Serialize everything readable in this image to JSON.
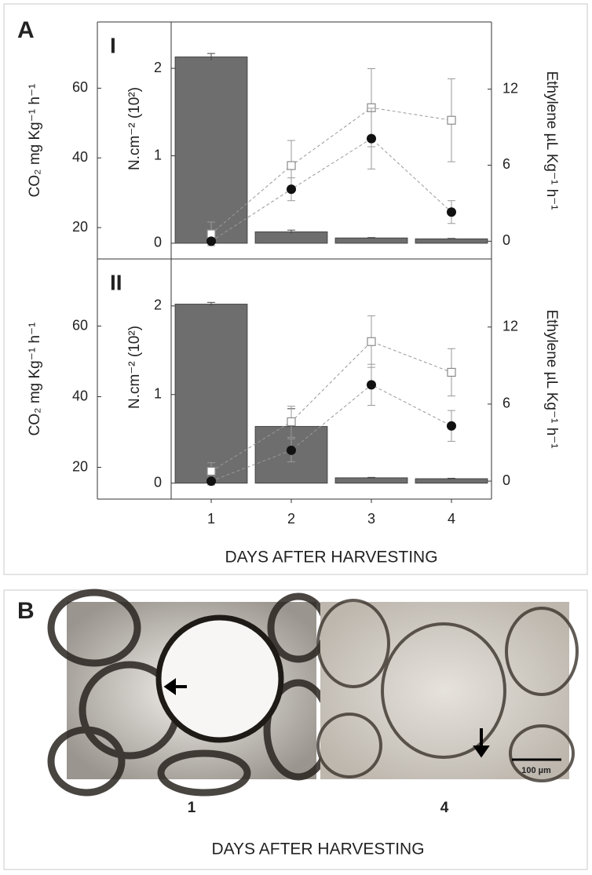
{
  "panel_a_label": "A",
  "chart_data": [
    {
      "type": "bar",
      "title": "I",
      "ylabel": "CO₂ mg Kg⁻¹ h⁻¹",
      "y2label": "Ethylene µL Kg⁻¹ h⁻¹",
      "y3label": "N.cm⁻² (10²)",
      "ylim": [
        11,
        79
      ],
      "yticks": [
        20,
        40,
        60
      ],
      "y2lim": [
        -1.4,
        17.3
      ],
      "y2ticks": [
        0,
        6,
        12
      ],
      "y3lim": [
        -0.18,
        2.53
      ],
      "y3ticks": [
        0,
        1,
        2
      ],
      "series": [
        {
          "type": "bar",
          "axis": "y3",
          "color": "#6e6e6e",
          "values": [
            2.13,
            0.13,
            0.06,
            0.05
          ],
          "errors": [
            0.04,
            0.02,
            0.005,
            0.005
          ]
        },
        {
          "type": "line",
          "marker": "square",
          "axis": "y",
          "color": "#8a8a8a",
          "values": [
            18.2,
            37.8,
            54.4,
            50.8
          ],
          "errors": [
            3.4,
            7.2,
            11.2,
            11.9
          ]
        },
        {
          "type": "line",
          "marker": "circle",
          "axis": "y2",
          "color": "#111111",
          "values": [
            0,
            4.1,
            8.1,
            2.3
          ],
          "errors": [
            0,
            0.9,
            2.4,
            0.9
          ]
        }
      ]
    },
    {
      "type": "bar",
      "title": "II",
      "ylabel": "CO₂ mg Kg⁻¹ h⁻¹",
      "y2label": "Ethylene µL Kg⁻¹ h⁻¹",
      "y3label": "N.cm⁻² (10²)",
      "xlabel": "DAYS AFTER HARVESTING",
      "categories": [
        "1",
        "2",
        "3",
        "4"
      ],
      "ylim": [
        11,
        79
      ],
      "yticks": [
        20,
        40,
        60
      ],
      "y2lim": [
        -1.4,
        17.3
      ],
      "y2ticks": [
        0,
        6,
        12
      ],
      "y3lim": [
        -0.18,
        2.53
      ],
      "y3ticks": [
        0,
        1,
        2
      ],
      "series": [
        {
          "type": "bar",
          "axis": "y3",
          "color": "#6e6e6e",
          "values": [
            2.02,
            0.64,
            0.06,
            0.05
          ],
          "errors": [
            0.02,
            0.2,
            0.005,
            0.005
          ]
        },
        {
          "type": "line",
          "marker": "square",
          "axis": "y",
          "color": "#8a8a8a",
          "values": [
            18.9,
            32.9,
            55.6,
            46.9
          ],
          "errors": [
            2.4,
            4.4,
            7.3,
            6.7
          ]
        },
        {
          "type": "line",
          "marker": "circle",
          "axis": "y2",
          "color": "#111111",
          "values": [
            0,
            2.4,
            7.5,
            4.3
          ],
          "errors": [
            0.3,
            0.9,
            1.6,
            1.2
          ]
        }
      ]
    }
  ],
  "panel_b": {
    "label": "B",
    "images": [
      {
        "label": "1"
      },
      {
        "label": "4"
      }
    ],
    "scale_bar": "100 µm",
    "xlabel": "DAYS AFTER HARVESTING"
  }
}
